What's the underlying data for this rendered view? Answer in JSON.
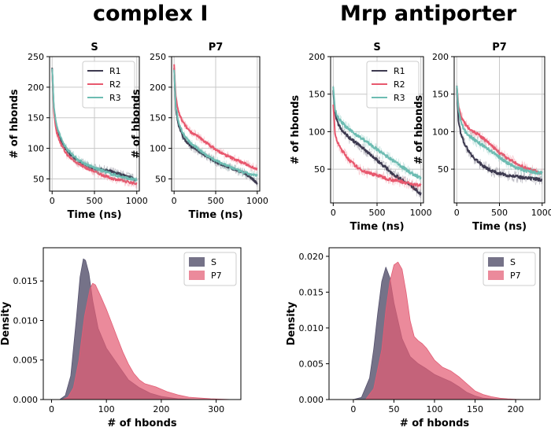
{
  "headings": {
    "left": "complex I",
    "right": "Mrp antiporter"
  },
  "colors": {
    "R1": "#3d3a50",
    "R2": "#e8586e",
    "R3": "#6dbcb2",
    "S": "#57536e",
    "P7": "#e35d75",
    "grid": "#c8c8c8"
  },
  "chart_data": [
    {
      "id": "cI-S",
      "type": "line",
      "panel": "complex I",
      "title": "S",
      "xlabel": "Time (ns)",
      "ylabel": "# of hbonds",
      "xlim": [
        -30,
        1030
      ],
      "ylim": [
        30,
        250
      ],
      "xticks": [
        0,
        500,
        1000
      ],
      "yticks": [
        50,
        100,
        150,
        200,
        250
      ],
      "legend": [
        "R1",
        "R2",
        "R3"
      ],
      "legend_loc": "upper-right",
      "series": [
        {
          "name": "R1",
          "x": [
            0,
            20,
            50,
            100,
            150,
            200,
            300,
            400,
            500,
            600,
            700,
            800,
            900,
            1000
          ],
          "y": [
            230,
            165,
            135,
            115,
            100,
            92,
            80,
            72,
            67,
            65,
            62,
            58,
            54,
            48
          ]
        },
        {
          "name": "R2",
          "x": [
            0,
            20,
            50,
            100,
            150,
            200,
            300,
            400,
            500,
            600,
            700,
            800,
            900,
            1000
          ],
          "y": [
            228,
            160,
            128,
            108,
            95,
            86,
            76,
            68,
            62,
            56,
            51,
            48,
            45,
            42
          ]
        },
        {
          "name": "R3",
          "x": [
            0,
            20,
            50,
            100,
            150,
            200,
            300,
            400,
            500,
            600,
            700,
            800,
            900,
            1000
          ],
          "y": [
            232,
            170,
            138,
            118,
            104,
            95,
            82,
            74,
            68,
            63,
            58,
            54,
            51,
            48
          ]
        }
      ]
    },
    {
      "id": "cI-P7",
      "type": "line",
      "panel": "complex I",
      "title": "P7",
      "xlabel": "Time (ns)",
      "ylabel": "# of hbonds",
      "xlim": [
        -30,
        1030
      ],
      "ylim": [
        30,
        250
      ],
      "xticks": [
        0,
        500,
        1000
      ],
      "yticks": [
        50,
        100,
        150,
        200,
        250
      ],
      "series": [
        {
          "name": "R1",
          "x": [
            0,
            20,
            50,
            100,
            150,
            200,
            300,
            400,
            500,
            600,
            700,
            800,
            900,
            1000
          ],
          "y": [
            232,
            165,
            140,
            120,
            110,
            104,
            95,
            86,
            78,
            72,
            67,
            62,
            55,
            42
          ]
        },
        {
          "name": "R2",
          "x": [
            0,
            20,
            50,
            100,
            150,
            200,
            300,
            400,
            500,
            600,
            700,
            800,
            900,
            1000
          ],
          "y": [
            236,
            185,
            160,
            144,
            134,
            127,
            118,
            108,
            98,
            90,
            84,
            78,
            72,
            66
          ]
        },
        {
          "name": "R3",
          "x": [
            0,
            20,
            50,
            100,
            150,
            200,
            300,
            400,
            500,
            600,
            700,
            800,
            900,
            1000
          ],
          "y": [
            230,
            170,
            145,
            126,
            116,
            108,
            98,
            88,
            80,
            74,
            68,
            62,
            58,
            55
          ]
        }
      ]
    },
    {
      "id": "Mrp-S",
      "type": "line",
      "panel": "Mrp antiporter",
      "title": "S",
      "xlabel": "Time (ns)",
      "ylabel": "# of hbonds",
      "xlim": [
        -30,
        1030
      ],
      "ylim": [
        5,
        200
      ],
      "xticks": [
        0,
        500,
        1000
      ],
      "yticks": [
        50,
        100,
        150,
        200
      ],
      "legend": [
        "R1",
        "R2",
        "R3"
      ],
      "legend_loc": "upper-right",
      "series": [
        {
          "name": "R1",
          "x": [
            0,
            20,
            50,
            100,
            150,
            200,
            300,
            400,
            500,
            600,
            700,
            800,
            900,
            1000
          ],
          "y": [
            155,
            125,
            112,
            102,
            96,
            90,
            82,
            72,
            62,
            52,
            42,
            35,
            27,
            17
          ]
        },
        {
          "name": "R2",
          "x": [
            0,
            20,
            50,
            100,
            150,
            200,
            300,
            400,
            500,
            600,
            700,
            800,
            900,
            1000
          ],
          "y": [
            135,
            98,
            85,
            75,
            67,
            60,
            50,
            45,
            42,
            38,
            35,
            33,
            30,
            28
          ]
        },
        {
          "name": "R3",
          "x": [
            0,
            20,
            50,
            100,
            150,
            200,
            300,
            400,
            500,
            600,
            700,
            800,
            900,
            1000
          ],
          "y": [
            162,
            130,
            120,
            112,
            106,
            101,
            93,
            85,
            76,
            68,
            60,
            52,
            44,
            38
          ]
        }
      ]
    },
    {
      "id": "Mrp-P7",
      "type": "line",
      "panel": "Mrp antiporter",
      "title": "P7",
      "xlabel": "Time (ns)",
      "ylabel": "# of hbonds",
      "xlim": [
        -30,
        1030
      ],
      "ylim": [
        5,
        200
      ],
      "xticks": [
        0,
        500,
        1000
      ],
      "yticks": [
        50,
        100,
        150,
        200
      ],
      "series": [
        {
          "name": "R1",
          "x": [
            0,
            20,
            50,
            100,
            150,
            200,
            300,
            400,
            500,
            600,
            700,
            800,
            900,
            1000
          ],
          "y": [
            160,
            115,
            95,
            82,
            72,
            65,
            55,
            48,
            44,
            42,
            40,
            38,
            37,
            36
          ]
        },
        {
          "name": "R2",
          "x": [
            0,
            20,
            50,
            100,
            150,
            200,
            300,
            400,
            500,
            600,
            700,
            800,
            900,
            1000
          ],
          "y": [
            162,
            135,
            120,
            110,
            104,
            100,
            92,
            82,
            72,
            64,
            57,
            52,
            48,
            44
          ]
        },
        {
          "name": "R3",
          "x": [
            0,
            20,
            50,
            100,
            150,
            200,
            300,
            400,
            500,
            600,
            700,
            800,
            900,
            1000
          ],
          "y": [
            163,
            128,
            112,
            100,
            94,
            90,
            82,
            74,
            66,
            58,
            52,
            48,
            46,
            45
          ]
        }
      ]
    },
    {
      "id": "cI-density",
      "type": "area",
      "panel": "complex I",
      "title": "",
      "xlabel": "# of hbonds",
      "ylabel": "Density",
      "xlim": [
        -15,
        345
      ],
      "ylim": [
        0,
        0.0192
      ],
      "xticks": [
        0,
        100,
        200,
        300
      ],
      "yticks": [
        0.0,
        0.005,
        0.01,
        0.015
      ],
      "ytick_labels": [
        "0.000",
        "0.005",
        "0.010",
        "0.015"
      ],
      "legend": [
        "S",
        "P7"
      ],
      "legend_loc": "upper-right",
      "series": [
        {
          "name": "S",
          "x": [
            15,
            25,
            35,
            45,
            52,
            58,
            62,
            68,
            75,
            85,
            100,
            120,
            140,
            160,
            180,
            200,
            230,
            260
          ],
          "y": [
            0,
            0.0005,
            0.003,
            0.01,
            0.0155,
            0.0178,
            0.0176,
            0.016,
            0.0125,
            0.009,
            0.0065,
            0.0045,
            0.0025,
            0.0015,
            0.0008,
            0.0004,
            0.0001,
            0
          ]
        },
        {
          "name": "P7",
          "x": [
            20,
            30,
            40,
            50,
            60,
            70,
            75,
            80,
            90,
            100,
            110,
            120,
            130,
            140,
            150,
            160,
            170,
            180,
            190,
            200,
            210,
            230,
            250,
            270,
            290,
            310,
            330
          ],
          "y": [
            0,
            0.0003,
            0.0015,
            0.005,
            0.0105,
            0.014,
            0.0147,
            0.0145,
            0.013,
            0.0114,
            0.0096,
            0.0078,
            0.006,
            0.0045,
            0.0033,
            0.0025,
            0.002,
            0.0018,
            0.0016,
            0.0013,
            0.001,
            0.0006,
            0.0003,
            0.0002,
            0.0001,
            5e-05,
            0
          ]
        }
      ]
    },
    {
      "id": "Mrp-density",
      "type": "area",
      "panel": "Mrp antiporter",
      "title": "",
      "xlabel": "# of hbonds",
      "ylabel": "Density",
      "xlim": [
        -30,
        230
      ],
      "ylim": [
        0,
        0.0212
      ],
      "xticks": [
        0,
        50,
        100,
        150,
        200
      ],
      "yticks": [
        0.0,
        0.005,
        0.01,
        0.015,
        0.02
      ],
      "ytick_labels": [
        "0.000",
        "0.005",
        "0.010",
        "0.015",
        "0.020"
      ],
      "legend": [
        "S",
        "P7"
      ],
      "legend_loc": "upper-right",
      "series": [
        {
          "name": "S",
          "x": [
            0,
            10,
            20,
            25,
            30,
            35,
            40,
            45,
            50,
            60,
            70,
            80,
            90,
            100,
            110,
            120,
            130,
            140,
            150,
            160,
            170,
            180
          ],
          "y": [
            0,
            0.0003,
            0.003,
            0.007,
            0.012,
            0.0165,
            0.0185,
            0.017,
            0.0135,
            0.0085,
            0.006,
            0.005,
            0.0043,
            0.0035,
            0.003,
            0.0025,
            0.0018,
            0.001,
            0.0005,
            0.0002,
            0.0001,
            0
          ]
        },
        {
          "name": "P7",
          "x": [
            15,
            25,
            35,
            40,
            45,
            50,
            55,
            60,
            65,
            70,
            75,
            80,
            85,
            90,
            100,
            110,
            120,
            130,
            140,
            150,
            160,
            170,
            180,
            190,
            200,
            210
          ],
          "y": [
            0,
            0.0015,
            0.007,
            0.0125,
            0.0165,
            0.0188,
            0.0192,
            0.0182,
            0.015,
            0.011,
            0.0088,
            0.0082,
            0.0078,
            0.0072,
            0.0055,
            0.0045,
            0.004,
            0.0032,
            0.0022,
            0.0012,
            0.0007,
            0.0004,
            0.0002,
            0.0001,
            3e-05,
            0
          ]
        }
      ]
    }
  ]
}
